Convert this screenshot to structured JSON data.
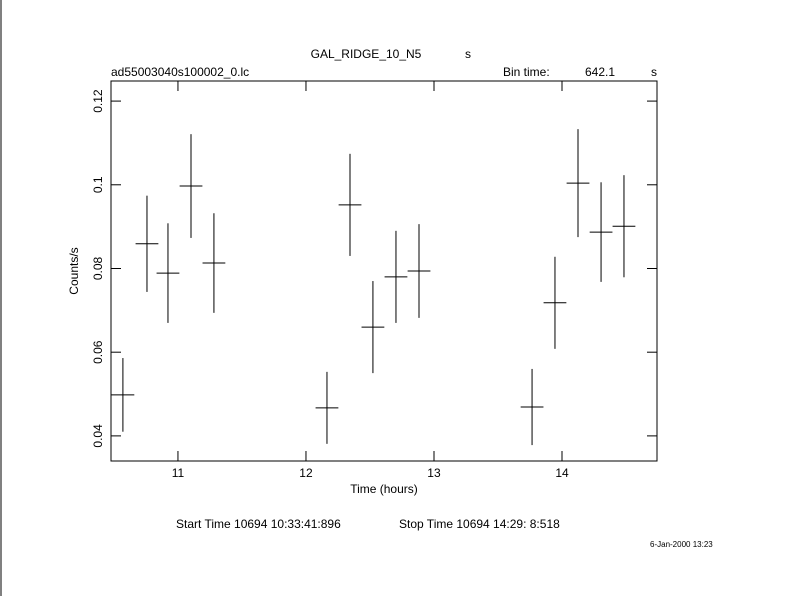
{
  "chart_data": {
    "type": "errorbar",
    "title": "GAL_RIDGE_10_N5",
    "title_unit": "s",
    "file_name": "ad55003040s100002_0.lc",
    "bin_time_label": "Bin time:",
    "bin_time": "642.1",
    "bin_time_unit": "s",
    "xlabel": "Time (hours)",
    "ylabel": "Counts/s",
    "start_time": "Start Time 10694 10:33:41:896",
    "stop_time": "Stop Time 10694 14:29: 8:518",
    "timestamp": "6-Jan-2000 13:23",
    "x": [
      10.57,
      10.758,
      10.922,
      11.102,
      11.281,
      12.164,
      12.344,
      12.523,
      12.703,
      12.883,
      13.766,
      13.945,
      14.125,
      14.305,
      14.484
    ],
    "xerr": [
      0.089,
      0.089,
      0.089,
      0.089,
      0.089,
      0.089,
      0.089,
      0.089,
      0.089,
      0.089,
      0.089,
      0.089,
      0.089,
      0.089,
      0.089
    ],
    "values": [
      0.0498,
      0.0859,
      0.0789,
      0.0997,
      0.0813,
      0.0467,
      0.0952,
      0.066,
      0.078,
      0.0794,
      0.0469,
      0.0718,
      0.1004,
      0.0887,
      0.0901
    ],
    "errors": [
      0.0088,
      0.0115,
      0.0119,
      0.0124,
      0.0119,
      0.0086,
      0.0122,
      0.011,
      0.011,
      0.0112,
      0.0091,
      0.011,
      0.0129,
      0.0119,
      0.0122
    ],
    "color": "#000000",
    "xlim": [
      10.477,
      14.742
    ],
    "ylim": [
      0.034,
      0.1248
    ],
    "xticks": [
      11,
      12,
      13,
      14
    ],
    "yticks": [
      0.04,
      0.06,
      0.08,
      0.1,
      0.12
    ]
  }
}
